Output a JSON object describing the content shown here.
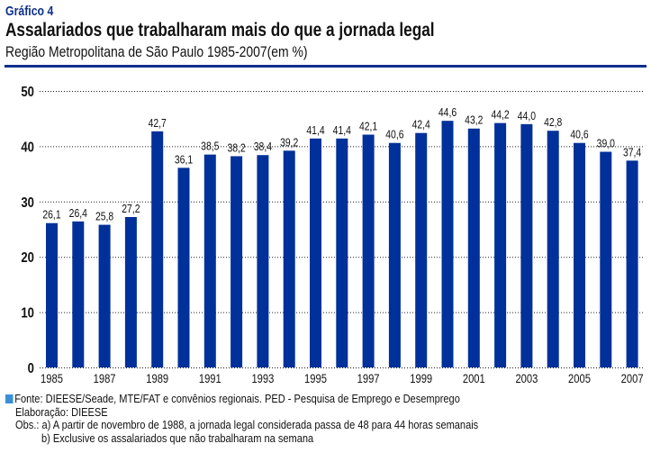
{
  "header": {
    "tag": "Gráfico 4",
    "title": "Assalariados que trabalharam mais do que a jornada legal",
    "subtitle": "Região Metropolitana de São Paulo 1985-2007(em %)"
  },
  "colors": {
    "bar": "#00309a",
    "accent": "#0d2f8c",
    "legend_square": "#3a8fd6"
  },
  "chart_data": {
    "type": "bar",
    "title": "Assalariados que trabalharam mais do que a jornada legal",
    "subtitle": "Região Metropolitana de São Paulo 1985-2007(em %)",
    "xlabel": "",
    "ylabel": "",
    "categories": [
      "1985",
      "1986",
      "1987",
      "1988",
      "1989",
      "1990",
      "1991",
      "1992",
      "1993",
      "1994",
      "1995",
      "1996",
      "1997",
      "1998",
      "1999",
      "2000",
      "2001",
      "2002",
      "2003",
      "2004",
      "2005",
      "2006",
      "2007"
    ],
    "x_tick_labels": [
      "1985",
      "",
      "1987",
      "",
      "1989",
      "",
      "1991",
      "",
      "1993",
      "",
      "1995",
      "",
      "1997",
      "",
      "1999",
      "",
      "2001",
      "",
      "2003",
      "",
      "2005",
      "",
      "2007"
    ],
    "values": [
      26.1,
      26.4,
      25.8,
      27.2,
      42.7,
      36.1,
      38.5,
      38.2,
      38.4,
      39.2,
      41.4,
      41.4,
      42.1,
      40.6,
      42.4,
      44.6,
      43.2,
      44.2,
      44.0,
      42.8,
      40.6,
      39.0,
      37.4
    ],
    "value_labels": [
      "26,1",
      "26,4",
      "25,8",
      "27,2",
      "42,7",
      "36,1",
      "38,5",
      "38,2",
      "38,4",
      "39,2",
      "41,4",
      "41,4",
      "42,1",
      "40,6",
      "42,4",
      "44,6",
      "43,2",
      "44,2",
      "44,0",
      "42,8",
      "40,6",
      "39,0",
      "37,4"
    ],
    "ylim": [
      0,
      50
    ],
    "y_ticks": [
      0,
      10,
      20,
      30,
      40,
      50
    ],
    "grid": true,
    "grid_style": "dotted",
    "legend": "none"
  },
  "footer": {
    "source": "Fonte: DIEESE/Seade, MTE/FAT e convênios regionais. PED - Pesquisa de Emprego e Desemprego",
    "elaboration": "Elaboração: DIEESE",
    "obs_a": "Obs.:  a) A partir de novembro de 1988, a jornada legal considerada passa de 48 para 44 horas semanais",
    "obs_b": "b) Exclusive os assalariados que não trabalharam na semana"
  }
}
